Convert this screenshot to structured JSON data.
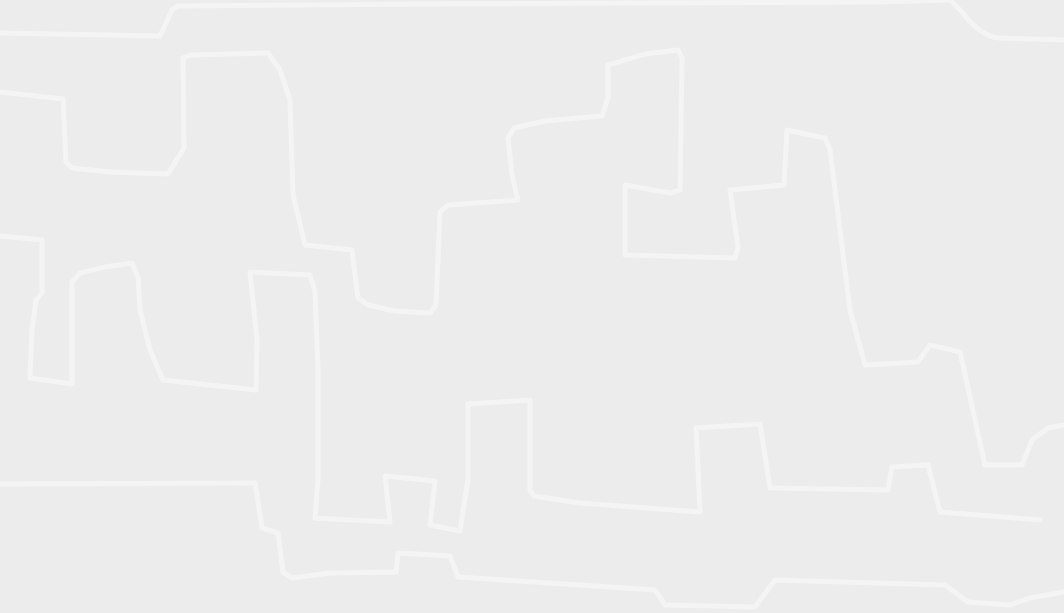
{
  "background": {
    "color": "#ececec",
    "pattern_color": "#f4f4f4",
    "pattern": "maze-line-icon"
  }
}
